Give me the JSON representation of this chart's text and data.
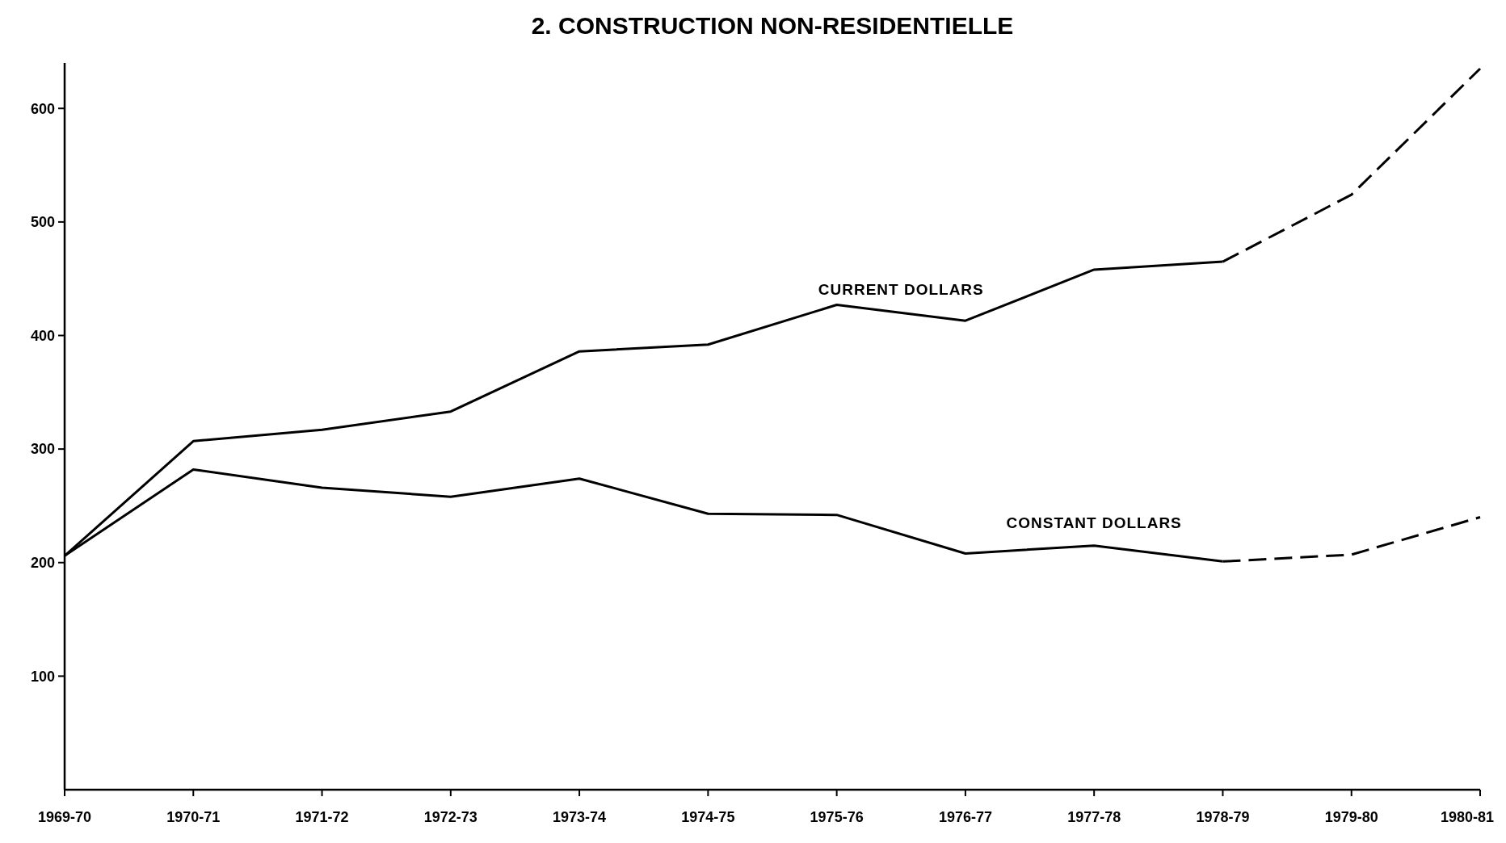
{
  "chart_data": {
    "type": "line",
    "title": "2. CONSTRUCTION NON-RESIDENTIELLE",
    "categories": [
      "1969-70",
      "1970-71",
      "1971-72",
      "1972-73",
      "1973-74",
      "1974-75",
      "1975-76",
      "1976-77",
      "1977-78",
      "1978-79",
      "1979-80",
      "1980-81"
    ],
    "series": [
      {
        "name": "CURRENT DOLLARS",
        "color": "#000000",
        "line_style": "solid",
        "values": [
          206,
          307,
          317,
          333,
          386,
          392,
          427,
          413,
          458,
          465,
          null,
          null
        ]
      },
      {
        "name": "CONSTANT DOLLARS",
        "color": "#000000",
        "line_style": "solid",
        "values": [
          206,
          282,
          266,
          258,
          274,
          243,
          242,
          208,
          215,
          201,
          null,
          null
        ]
      },
      {
        "color": "#000000",
        "line_style": "dashed",
        "values": [
          null,
          null,
          null,
          null,
          null,
          null,
          null,
          null,
          null,
          465,
          524,
          635
        ]
      },
      {
        "color": "#000000",
        "line_style": "dashed",
        "values": [
          null,
          null,
          null,
          null,
          null,
          null,
          null,
          null,
          null,
          201,
          207,
          240
        ]
      }
    ],
    "ylim": [
      0,
      640
    ],
    "yticks": [
      100,
      200,
      300,
      400,
      500,
      600
    ],
    "grid": false,
    "marker": "none"
  }
}
